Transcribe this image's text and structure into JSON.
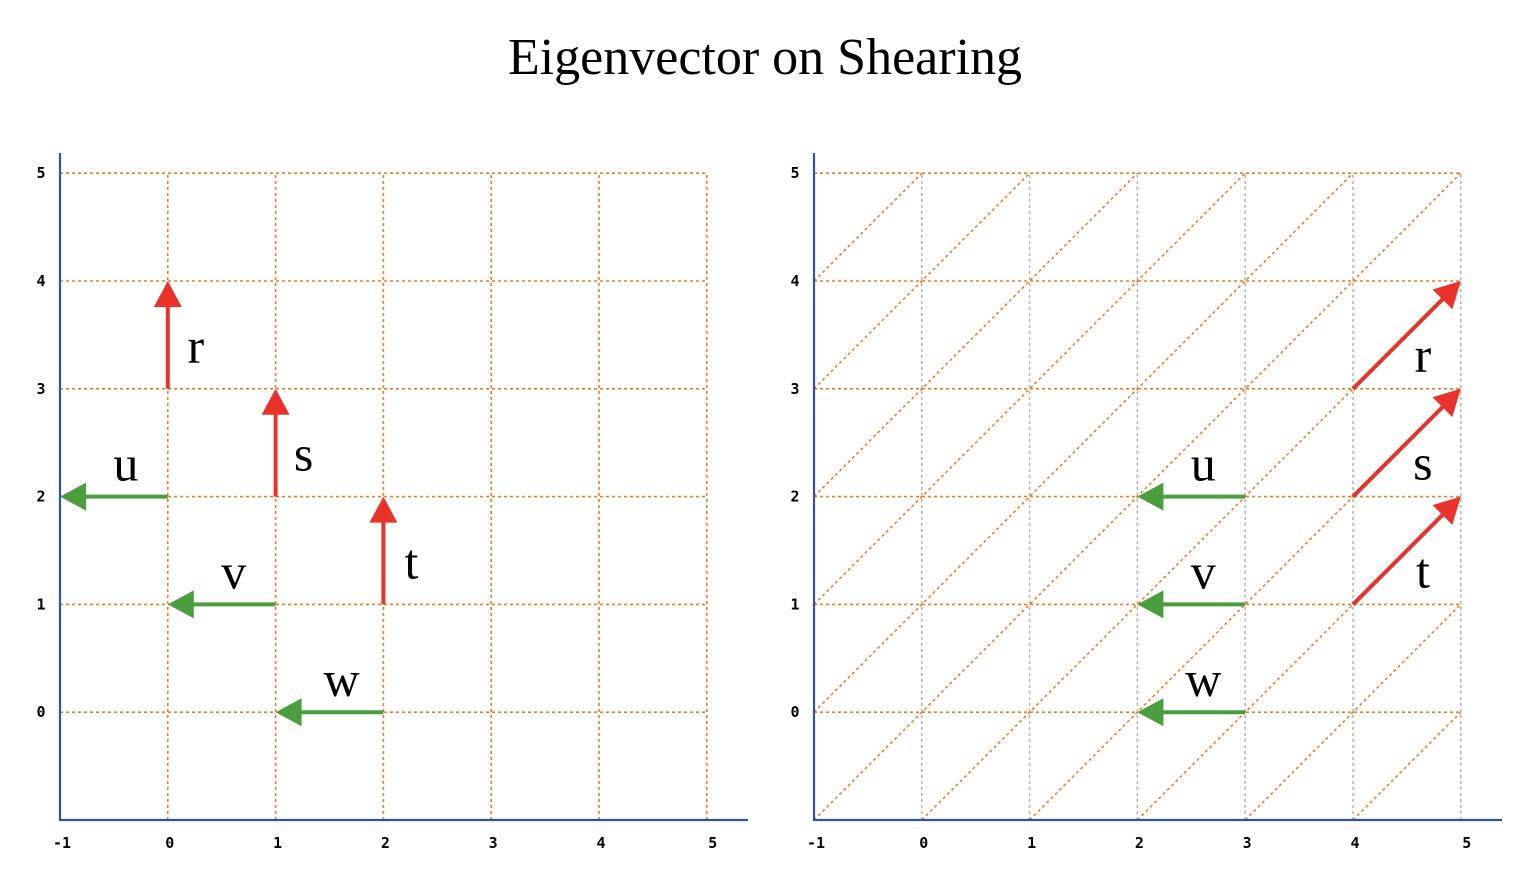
{
  "title": "Eigenvector on Shearing",
  "colors": {
    "grid": "#ee7d22",
    "axis": "#2f5597",
    "eigen_arrow": "#e8322a",
    "other_arrow": "#4a9e3e",
    "original_vertical": "#b8b8b8"
  },
  "panels": [
    {
      "name": "original",
      "xlim": [
        -1,
        5
      ],
      "ylim": [
        -1,
        5
      ],
      "x_ticks": [
        "-1",
        "0",
        "1",
        "2",
        "3",
        "4",
        "5"
      ],
      "y_ticks": [
        "0",
        "1",
        "2",
        "3",
        "4",
        "5"
      ],
      "shear": 0,
      "vectors": [
        {
          "label": "r",
          "kind": "eigen",
          "from": [
            0,
            3
          ],
          "to": [
            0,
            4
          ]
        },
        {
          "label": "s",
          "kind": "eigen",
          "from": [
            1,
            2
          ],
          "to": [
            1,
            3
          ]
        },
        {
          "label": "t",
          "kind": "eigen",
          "from": [
            2,
            1
          ],
          "to": [
            2,
            2
          ]
        },
        {
          "label": "u",
          "kind": "other",
          "from": [
            0,
            2
          ],
          "to": [
            -1,
            2
          ]
        },
        {
          "label": "v",
          "kind": "other",
          "from": [
            1,
            1
          ],
          "to": [
            0,
            1
          ]
        },
        {
          "label": "w",
          "kind": "other",
          "from": [
            2,
            0
          ],
          "to": [
            1,
            0
          ]
        }
      ]
    },
    {
      "name": "sheared",
      "xlim": [
        -1,
        5
      ],
      "ylim": [
        -1,
        5
      ],
      "x_ticks": [
        "-1",
        "0",
        "1",
        "2",
        "3",
        "4",
        "5"
      ],
      "y_ticks": [
        "0",
        "1",
        "2",
        "3",
        "4",
        "5"
      ],
      "shear": 1,
      "vectors": [
        {
          "label": "r",
          "kind": "eigen",
          "from": [
            4,
            3
          ],
          "to": [
            5,
            4
          ]
        },
        {
          "label": "s",
          "kind": "eigen",
          "from": [
            4,
            2
          ],
          "to": [
            5,
            3
          ]
        },
        {
          "label": "t",
          "kind": "eigen",
          "from": [
            4,
            1
          ],
          "to": [
            5,
            2
          ]
        },
        {
          "label": "u",
          "kind": "other",
          "from": [
            3,
            2
          ],
          "to": [
            2,
            2
          ]
        },
        {
          "label": "v",
          "kind": "other",
          "from": [
            3,
            1
          ],
          "to": [
            2,
            1
          ]
        },
        {
          "label": "w",
          "kind": "other",
          "from": [
            3,
            0
          ],
          "to": [
            2,
            0
          ]
        }
      ]
    }
  ]
}
